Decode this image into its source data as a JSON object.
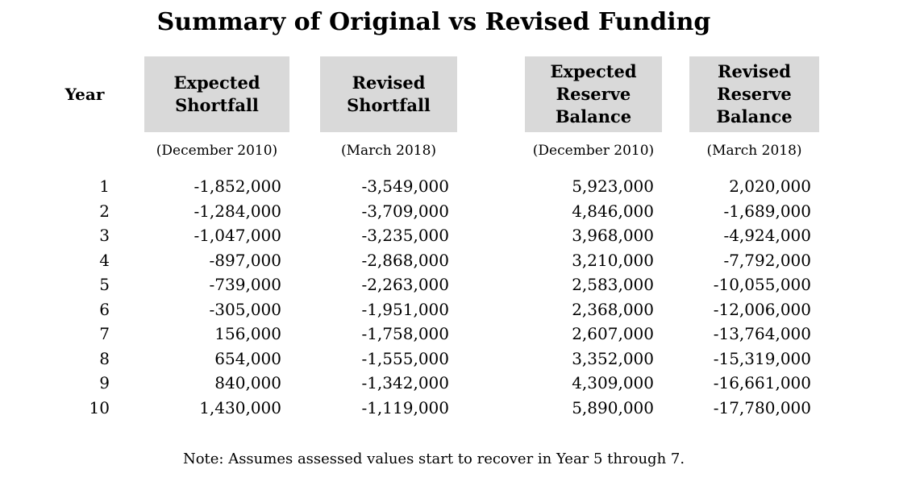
{
  "title": "Summary of Original vs Revised Funding",
  "table": {
    "year_header": "Year",
    "columns": [
      {
        "label": "Expected\nShortfall",
        "period": "(December 2010)"
      },
      {
        "label": "Revised\nShortfall",
        "period": "(March 2018)"
      },
      {
        "label": "Expected\nReserve\nBalance",
        "period": "(December 2010)"
      },
      {
        "label": "Revised\nReserve\nBalance",
        "period": "(March 2018)"
      }
    ],
    "rows": [
      {
        "year": "1",
        "values": [
          "-1,852,000",
          "-3,549,000",
          "5,923,000",
          "2,020,000"
        ]
      },
      {
        "year": "2",
        "values": [
          "-1,284,000",
          "-3,709,000",
          "4,846,000",
          "-1,689,000"
        ]
      },
      {
        "year": "3",
        "values": [
          "-1,047,000",
          "-3,235,000",
          "3,968,000",
          "-4,924,000"
        ]
      },
      {
        "year": "4",
        "values": [
          "-897,000",
          "-2,868,000",
          "3,210,000",
          "-7,792,000"
        ]
      },
      {
        "year": "5",
        "values": [
          "-739,000",
          "-2,263,000",
          "2,583,000",
          "-10,055,000"
        ]
      },
      {
        "year": "6",
        "values": [
          "-305,000",
          "-1,951,000",
          "2,368,000",
          "-12,006,000"
        ]
      },
      {
        "year": "7",
        "values": [
          "156,000",
          "-1,758,000",
          "2,607,000",
          "-13,764,000"
        ]
      },
      {
        "year": "8",
        "values": [
          "654,000",
          "-1,555,000",
          "3,352,000",
          "-15,319,000"
        ]
      },
      {
        "year": "9",
        "values": [
          "840,000",
          "-1,342,000",
          "4,309,000",
          "-16,661,000"
        ]
      },
      {
        "year": "10",
        "values": [
          "1,430,000",
          "-1,119,000",
          "5,890,000",
          "-17,780,000"
        ]
      }
    ]
  },
  "note": "Note: Assumes assessed values start to recover in Year 5 through 7.",
  "colors": {
    "header_bg": "#d9d9d9",
    "text": "#000000",
    "background": "#ffffff"
  }
}
